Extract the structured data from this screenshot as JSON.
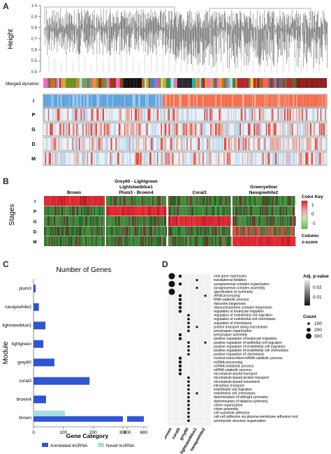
{
  "panelA": {
    "letter": "A",
    "ylabel": "Height",
    "yticks": [
      "1.0",
      "0.9",
      "0.8",
      "0.7",
      "0.6",
      "0.5",
      "0.4"
    ],
    "merged_label": "Merged dynamic",
    "rows": [
      "I",
      "P",
      "G",
      "D",
      "M"
    ]
  },
  "panelB": {
    "letter": "B",
    "ylabel": "Stages",
    "rows": [
      "I",
      "P",
      "G",
      "D",
      "M"
    ],
    "modules": [
      "Brown",
      "Grey60 - Lightgreen\nLightsteelblue1\nPlum3 - Brown4",
      "Coral3",
      "Greenyellow\nNavajowhite2"
    ],
    "module_lines": [
      [
        "Brown"
      ],
      [
        "Grey60 - Lightgreen",
        "Lightsteelblue1",
        "Plum3 - Brown4"
      ],
      [
        "Coral3"
      ],
      [
        "Greenyellow",
        "Navajowhite2"
      ]
    ],
    "colorkey": {
      "title": "Color Key",
      "ticks": [
        "1",
        "0",
        "-1"
      ],
      "footer": [
        "Column",
        "z-score"
      ]
    }
  },
  "panelC": {
    "letter": "C",
    "ylabel": "Module",
    "xlabel": "Number of Genes",
    "legend_title": "Gene Category",
    "legend": [
      {
        "name": "Annotated lncRNA",
        "color": "#2f55d4"
      },
      {
        "name": "Novel lncRNA",
        "color": "#a8dede"
      }
    ],
    "xticks": [
      "0",
      "100",
      "200",
      "300",
      "600",
      "680"
    ],
    "chart_data": {
      "type": "bar",
      "categories": [
        "plum3",
        "navajowhite2",
        "lightsteelblue1",
        "lightgreen",
        "grey60",
        "coral3",
        "brown4",
        "brown"
      ],
      "series": [
        {
          "name": "Annotated lncRNA",
          "values": [
            7,
            18,
            40,
            33,
            70,
            188,
            42,
            290
          ]
        },
        {
          "name": "Novel lncRNA",
          "values": [
            2,
            2,
            3,
            2,
            3,
            10,
            3,
            105
          ]
        }
      ]
    }
  },
  "panelD": {
    "letter": "D",
    "terms": [
      "viral gene expression",
      "translational initiation",
      "synaptonemal complex organization",
      "synaptonemal complex assembly",
      "specification of symmetry",
      "rRNA processing",
      "RNA catabolic process",
      "ribosome biogenesis",
      "ribonucleoprotein complex biogenesis",
      "regulation of leukocyte migration",
      "regulation of endothelial cell migration",
      "regulation of endothelial cell chemotaxis",
      "regulation of chemotaxis",
      "protein transport along microtubule",
      "presynapse organization",
      "presynapse assembly",
      "positive regulation of leukocyte migration",
      "positive regulation of epithelial cell migration",
      "positive regulation of endothelial cell migration",
      "positive regulation of endothelial cell chemotaxis",
      "positive regulation of chemotaxis",
      "nuclear-transcribed mRNA catabolic process",
      "ncRNA processing",
      "ncRNA metabolic process",
      "mRNA catabolic process",
      "microtubule-based transport",
      "microtubule-based protein transport",
      "microtubule-based movement",
      "intraciliary transport",
      "endothelial cell migration",
      "endothelial cell chemotaxis",
      "determination of left/right symmetry",
      "determination of bilateral symmetry",
      "cilium organization",
      "cilium assembly",
      "cell-substrate adhesion",
      "cell-cell adhesion via plasma-membrane adhesion mol.",
      "actomyosin structure organization"
    ],
    "columns": [
      "brown",
      "coral3",
      "grey60",
      "lightsteelblue1",
      "navajowhite2"
    ],
    "legend": {
      "padj_title": "Adj. p-value",
      "padj_ticks": [
        "0.02",
        "0.01"
      ],
      "count_title": "Count",
      "count_ticks": [
        "100",
        "200",
        "300"
      ]
    }
  }
}
